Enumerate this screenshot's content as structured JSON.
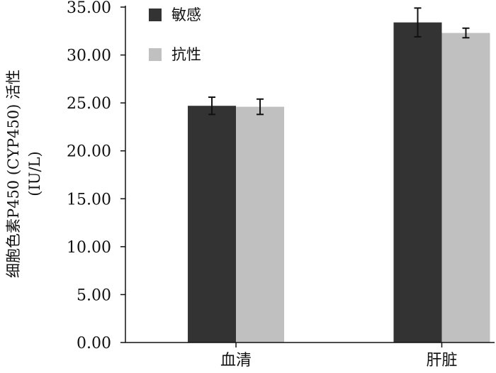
{
  "chart_data": {
    "type": "bar",
    "categories": [
      "血清",
      "肝脏"
    ],
    "series": [
      {
        "name": "敏感",
        "values": [
          24.7,
          33.4
        ],
        "errors": [
          0.9,
          1.5
        ],
        "color": "#333333"
      },
      {
        "name": "抗性",
        "values": [
          24.6,
          32.3
        ],
        "errors": [
          0.8,
          0.5
        ],
        "color": "#c0c0c0"
      }
    ],
    "ylim": [
      0,
      35
    ],
    "yticks": [
      "0.00",
      "5.00",
      "10.00",
      "15.00",
      "20.00",
      "25.00",
      "30.00",
      "35.00"
    ],
    "ylabel_lines": [
      "细胞色素P450 (CYP450) 活性",
      "(IU/L)"
    ],
    "xlabel": "",
    "legend_position": "top-left",
    "grid": false
  }
}
